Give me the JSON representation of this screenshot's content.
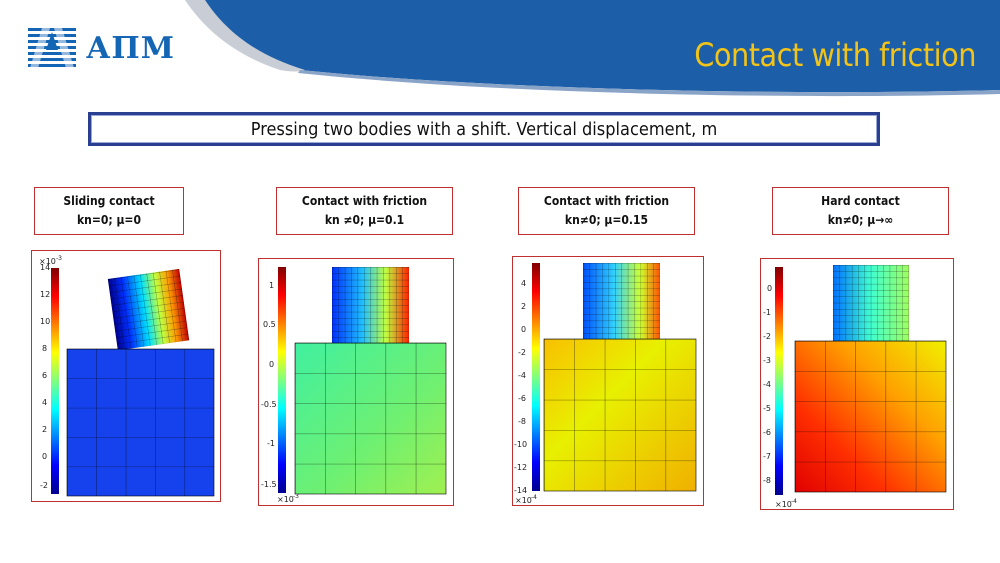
{
  "header": {
    "logo_text": "АПМ",
    "title": "Contact with friction",
    "colors": {
      "band": "#1d5ea8",
      "title": "#f2c318",
      "logo": "#1565b5"
    }
  },
  "subtitle": "Pressing two bodies with a shift. Vertical displacement, m",
  "cases": [
    {
      "title": "Sliding contact",
      "params": "kn=0; μ=0",
      "scale_label": "×10⁻³",
      "ticks": [
        "14",
        "12",
        "10",
        "8",
        "6",
        "4",
        "2",
        "0",
        "-2"
      ]
    },
    {
      "title": "Contact with friction",
      "params": "kn ≠0; μ=0.1",
      "scale_label": "×10⁻³",
      "ticks": [
        "1",
        "0.5",
        "0",
        "-0.5",
        "-1",
        "-1.5"
      ]
    },
    {
      "title": "Contact with friction",
      "params": "kn≠0; μ=0.15",
      "scale_label": "×10⁻⁴",
      "ticks": [
        "4",
        "2",
        "0",
        "-2",
        "-4",
        "-6",
        "-8",
        "-10",
        "-12",
        "-14"
      ]
    },
    {
      "title": "Hard contact",
      "params": "kn≠0; μ→∞",
      "scale_label": "×10⁻⁴",
      "ticks": [
        "0",
        "-1",
        "-2",
        "-3",
        "-4",
        "-5",
        "-6",
        "-7",
        "-8"
      ]
    }
  ]
}
